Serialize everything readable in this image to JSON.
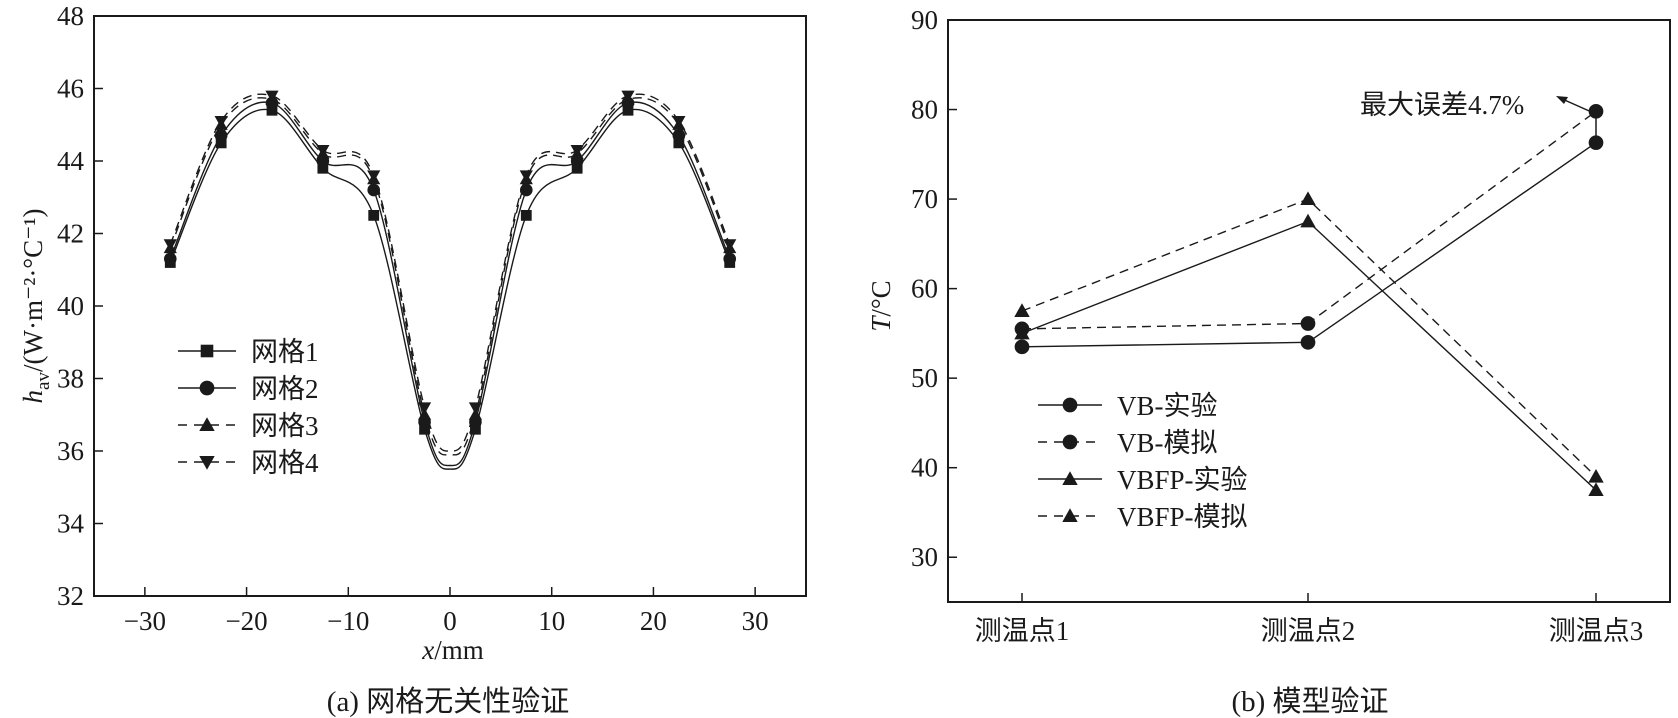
{
  "chart_data": [
    {
      "type": "line",
      "caption": "(a) 网格无关性验证",
      "xlabel": "x/mm",
      "ylabel": "h_av/(W·m⁻²·°C⁻¹)",
      "ylabel_main": "h",
      "ylabel_sub": "av",
      "ylabel_unit": "/(W·m⁻²·°C⁻¹)",
      "xlabel_var": "x",
      "xlabel_unit": "/mm",
      "xlim": [
        -35,
        35
      ],
      "ylim": [
        32,
        48
      ],
      "xticks": [
        -30,
        -20,
        -10,
        0,
        10,
        20,
        30
      ],
      "xtick_labels": [
        "−30",
        "−20",
        "−10",
        "0",
        "10",
        "20",
        "30"
      ],
      "yticks": [
        32,
        34,
        36,
        38,
        40,
        42,
        44,
        46,
        48
      ],
      "ytick_labels": [
        "32",
        "34",
        "36",
        "38",
        "40",
        "42",
        "44",
        "46",
        "48"
      ],
      "x": [
        -27.5,
        -22.5,
        -17.5,
        -12.5,
        -7.5,
        -2.5,
        2.5,
        7.5,
        12.5,
        17.5,
        22.5,
        27.5
      ],
      "series": [
        {
          "name": "网格1",
          "marker": "square",
          "dash": false,
          "values": [
            41.2,
            44.5,
            45.4,
            43.8,
            42.5,
            36.6,
            36.6,
            42.5,
            43.8,
            45.4,
            44.5,
            41.2
          ],
          "min_at_zero": 35.5
        },
        {
          "name": "网格2",
          "marker": "circle",
          "dash": false,
          "values": [
            41.3,
            44.7,
            45.6,
            44.0,
            43.2,
            36.8,
            36.8,
            43.2,
            44.0,
            45.6,
            44.7,
            41.3
          ],
          "min_at_zero": 35.6
        },
        {
          "name": "网格3",
          "marker": "triangle-up",
          "dash": true,
          "values": [
            41.6,
            45.0,
            45.7,
            44.2,
            43.5,
            37.0,
            37.0,
            43.5,
            44.2,
            45.7,
            45.0,
            41.6
          ],
          "min_at_zero": 35.9
        },
        {
          "name": "网格4",
          "marker": "triangle-down",
          "dash": true,
          "values": [
            41.7,
            45.1,
            45.8,
            44.3,
            43.6,
            37.2,
            37.2,
            43.6,
            44.3,
            45.8,
            45.1,
            41.7
          ],
          "min_at_zero": 36.0
        }
      ],
      "legend_position": "lower-left"
    },
    {
      "type": "line",
      "caption": "(b) 模型验证",
      "ylabel": "T/°C",
      "ylabel_var": "T",
      "ylabel_unit": "/°C",
      "ylim": [
        25,
        90
      ],
      "yticks": [
        30,
        40,
        50,
        60,
        70,
        80,
        90
      ],
      "ytick_labels": [
        "30",
        "40",
        "50",
        "60",
        "70",
        "80",
        "90"
      ],
      "categories": [
        "测温点1",
        "测温点2",
        "测温点3"
      ],
      "series": [
        {
          "name": "VB-实验",
          "marker": "circle",
          "dash": false,
          "values": [
            53.5,
            54.0,
            76.3
          ]
        },
        {
          "name": "VB-模拟",
          "marker": "circle",
          "dash": true,
          "values": [
            55.5,
            56.1,
            79.8
          ]
        },
        {
          "name": "VBFP-实验",
          "marker": "triangle-up",
          "dash": false,
          "values": [
            55.0,
            67.5,
            37.5
          ]
        },
        {
          "name": "VBFP-模拟",
          "marker": "triangle-up",
          "dash": true,
          "values": [
            57.5,
            70.0,
            39.0
          ]
        }
      ],
      "annotation": "最大误差4.7%",
      "legend_position": "lower-left"
    }
  ]
}
